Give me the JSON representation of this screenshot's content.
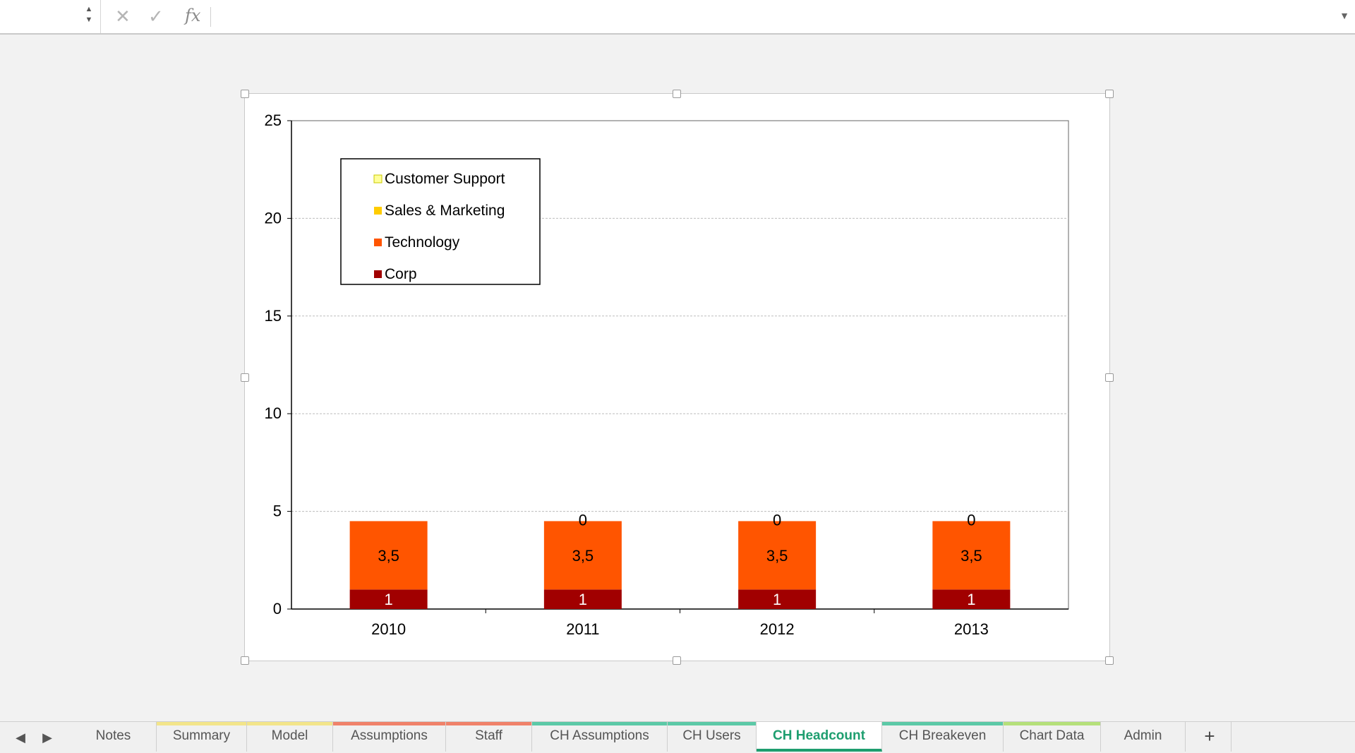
{
  "formula_bar": {
    "cancel_icon": "close-icon",
    "confirm_icon": "check-icon",
    "fx_label": "fx",
    "value": ""
  },
  "colors": {
    "customer_support": "#ffff99",
    "sales_marketing": "#ffcc00",
    "technology": "#ff5500",
    "corp": "#a10000",
    "active_tab": "#1e9e6f"
  },
  "chart_data": {
    "type": "bar",
    "stacked": true,
    "categories": [
      "2010",
      "2011",
      "2012",
      "2013"
    ],
    "series": [
      {
        "name": "Corp",
        "values": [
          1,
          1,
          1,
          1
        ],
        "labels": [
          "1",
          "1",
          "1",
          "1"
        ]
      },
      {
        "name": "Technology",
        "values": [
          3.5,
          3.5,
          3.5,
          3.5
        ],
        "labels": [
          "3,5",
          "3,5",
          "3,5",
          "3,5"
        ]
      },
      {
        "name": "Sales & Marketing",
        "values": [
          0,
          0,
          0,
          0
        ],
        "labels": [
          "",
          "0",
          "0",
          "0"
        ]
      },
      {
        "name": "Customer Support",
        "values": [
          0,
          0,
          0,
          0
        ],
        "labels": [
          "",
          "",
          "",
          ""
        ]
      }
    ],
    "ylim": [
      0,
      25
    ],
    "yticks": [
      "0",
      "5",
      "10",
      "15",
      "20",
      "25"
    ],
    "grid": true,
    "legend_position": "top-left",
    "legend_order": [
      "Customer Support",
      "Sales & Marketing",
      "Technology",
      "Corp"
    ],
    "title": "",
    "xlabel": "",
    "ylabel": ""
  },
  "sheet_tabs": [
    {
      "label": "Notes",
      "color": "",
      "active": false
    },
    {
      "label": "Summary",
      "color": "#f3e58a",
      "active": false
    },
    {
      "label": "Model",
      "color": "#f3e58a",
      "active": false
    },
    {
      "label": "Assumptions",
      "color": "#f0826a",
      "active": false
    },
    {
      "label": "Staff",
      "color": "#f0826a",
      "active": false
    },
    {
      "label": "CH Assumptions",
      "color": "#5cc9a7",
      "active": false
    },
    {
      "label": "CH Users",
      "color": "#5cc9a7",
      "active": false
    },
    {
      "label": "CH Headcount",
      "color": "#1e9e6f",
      "active": true
    },
    {
      "label": "CH Breakeven",
      "color": "#5cc9a7",
      "active": false
    },
    {
      "label": "Chart Data",
      "color": "#b5e07a",
      "active": false
    },
    {
      "label": "Admin",
      "color": "",
      "active": false
    }
  ],
  "add_sheet_label": "+"
}
